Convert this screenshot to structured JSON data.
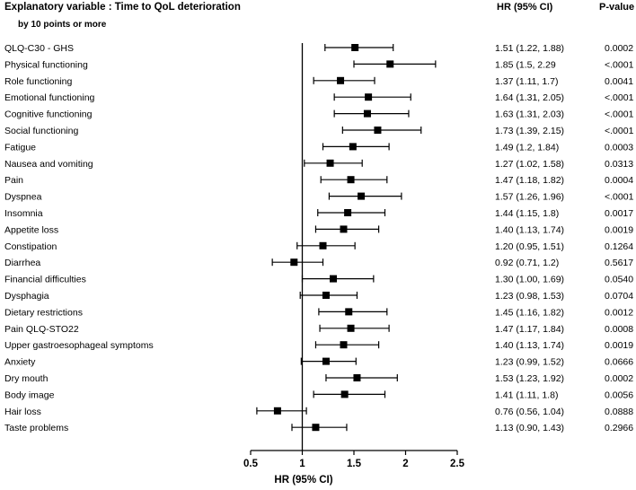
{
  "chart_data": {
    "type": "forest",
    "title_line1": "Explanatory variable : Time to QoL deterioration",
    "title_line2": "by 10 points  or more",
    "hr_header": "HR (95% CI)",
    "p_header": "P-value",
    "xlabel": "HR (95% CI)",
    "xlim": [
      0.5,
      2.5
    ],
    "xticks": [
      "0.5",
      "1",
      "1.5",
      "2",
      "2.5"
    ],
    "reference_line": 1,
    "rows": [
      {
        "label": "QLQ-C30  - GHS",
        "hr": 1.51,
        "lo": 1.22,
        "hi": 1.88,
        "ci_text": "1.51 (1.22, 1.88)",
        "p": "0.0002"
      },
      {
        "label": "Physical functioning",
        "hr": 1.85,
        "lo": 1.5,
        "hi": 2.29,
        "ci_text": "1.85 (1.5, 2.29",
        "p": "<.0001"
      },
      {
        "label": "Role functioning",
        "hr": 1.37,
        "lo": 1.11,
        "hi": 1.7,
        "ci_text": "1.37 (1.11, 1.7)",
        "p": "0.0041"
      },
      {
        "label": "Emotional functioning",
        "hr": 1.64,
        "lo": 1.31,
        "hi": 2.05,
        "ci_text": "1.64 (1.31, 2.05)",
        "p": "<.0001"
      },
      {
        "label": "Cognitive functioning",
        "hr": 1.63,
        "lo": 1.31,
        "hi": 2.03,
        "ci_text": "1.63 (1.31, 2.03)",
        "p": "<.0001"
      },
      {
        "label": "Social functioning",
        "hr": 1.73,
        "lo": 1.39,
        "hi": 2.15,
        "ci_text": "1.73 (1.39, 2.15)",
        "p": "<.0001"
      },
      {
        "label": "Fatigue",
        "hr": 1.49,
        "lo": 1.2,
        "hi": 1.84,
        "ci_text": "1.49 (1.2, 1.84)",
        "p": "0.0003"
      },
      {
        "label": "Nausea  and  vomiting",
        "hr": 1.27,
        "lo": 1.02,
        "hi": 1.58,
        "ci_text": "1.27 (1.02, 1.58)",
        "p": "0.0313"
      },
      {
        "label": "Pain",
        "hr": 1.47,
        "lo": 1.18,
        "hi": 1.82,
        "ci_text": "1.47 (1.18, 1.82)",
        "p": "0.0004"
      },
      {
        "label": "Dyspnea",
        "hr": 1.57,
        "lo": 1.26,
        "hi": 1.96,
        "ci_text": "1.57 (1.26, 1.96)",
        "p": "<.0001"
      },
      {
        "label": "Insomnia",
        "hr": 1.44,
        "lo": 1.15,
        "hi": 1.8,
        "ci_text": "1.44 (1.15, 1.8)",
        "p": "0.0017"
      },
      {
        "label": "Appetite  loss",
        "hr": 1.4,
        "lo": 1.13,
        "hi": 1.74,
        "ci_text": "1.40 (1.13, 1.74)",
        "p": "0.0019"
      },
      {
        "label": "Constipation",
        "hr": 1.2,
        "lo": 0.95,
        "hi": 1.51,
        "ci_text": "1.20 (0.95, 1.51)",
        "p": "0.1264"
      },
      {
        "label": "Diarrhea",
        "hr": 0.92,
        "lo": 0.71,
        "hi": 1.2,
        "ci_text": "0.92 (0.71, 1.2)",
        "p": "0.5617"
      },
      {
        "label": "Financial  difficulties",
        "hr": 1.3,
        "lo": 1.0,
        "hi": 1.69,
        "ci_text": "1.30 (1.00, 1.69)",
        "p": "0.0540"
      },
      {
        "label": "Dysphagia",
        "hr": 1.23,
        "lo": 0.98,
        "hi": 1.53,
        "ci_text": "1.23 (0.98, 1.53)",
        "p": "0.0704"
      },
      {
        "label": "Dietary  restrictions",
        "hr": 1.45,
        "lo": 1.16,
        "hi": 1.82,
        "ci_text": "1.45 (1.16, 1.82)",
        "p": "0.0012"
      },
      {
        "label": "Pain  QLQ-STO22",
        "hr": 1.47,
        "lo": 1.17,
        "hi": 1.84,
        "ci_text": "1.47 (1.17, 1.84)",
        "p": "0.0008"
      },
      {
        "label": "Upper  gastroesophageal  symptoms",
        "hr": 1.4,
        "lo": 1.13,
        "hi": 1.74,
        "ci_text": "1.40 (1.13, 1.74)",
        "p": "0.0019"
      },
      {
        "label": "Anxiety",
        "hr": 1.23,
        "lo": 0.99,
        "hi": 1.52,
        "ci_text": "1.23 (0.99, 1.52)",
        "p": "0.0666"
      },
      {
        "label": "Dry mouth",
        "hr": 1.53,
        "lo": 1.23,
        "hi": 1.92,
        "ci_text": "1.53 (1.23, 1.92)",
        "p": "0.0002"
      },
      {
        "label": "Body  image",
        "hr": 1.41,
        "lo": 1.11,
        "hi": 1.8,
        "ci_text": "1.41 (1.11, 1.8)",
        "p": "0.0056"
      },
      {
        "label": "Hair loss",
        "hr": 0.76,
        "lo": 0.56,
        "hi": 1.04,
        "ci_text": "0.76 (0.56, 1.04)",
        "p": "0.0888"
      },
      {
        "label": "Taste  problems",
        "hr": 1.13,
        "lo": 0.9,
        "hi": 1.43,
        "ci_text": "1.13 (0.90, 1.43)",
        "p": "0.2966"
      }
    ]
  }
}
